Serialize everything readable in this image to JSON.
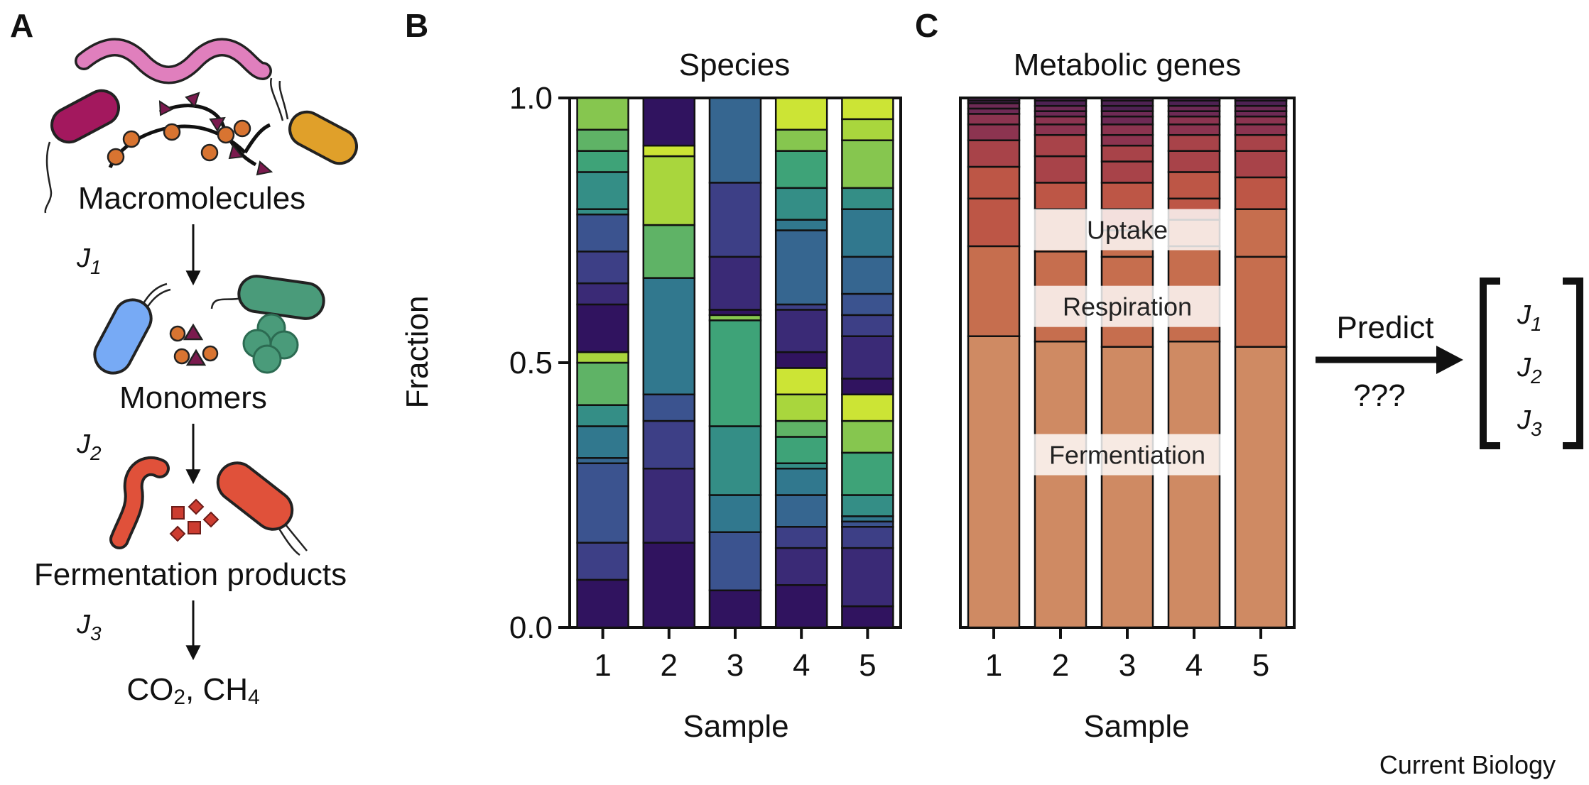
{
  "panel_a": {
    "letter": "A",
    "stages": [
      "Macromolecules",
      "Monomers",
      "Fermentation products"
    ],
    "final_pre": "CO",
    "final_sub1": "2",
    "final_mid": ", CH",
    "final_sub2": "4",
    "flux_labels": [
      {
        "j": "J",
        "sub": "1"
      },
      {
        "j": "J",
        "sub": "2"
      },
      {
        "j": "J",
        "sub": "3"
      }
    ]
  },
  "panel_b": {
    "letter": "B"
  },
  "panel_c": {
    "letter": "C"
  },
  "predict": {
    "label": "Predict",
    "unknown": "???",
    "vector": [
      {
        "j": "J",
        "sub": "1"
      },
      {
        "j": "J",
        "sub": "2"
      },
      {
        "j": "J",
        "sub": "3"
      }
    ]
  },
  "credit": "Current Biology",
  "colors": {
    "species": [
      "#30135f",
      "#3a2a76",
      "#3d3f86",
      "#3b538f",
      "#366690",
      "#31788e",
      "#348e86",
      "#3ea378",
      "#5fb366",
      "#86c64f",
      "#a9d63d",
      "#cce435"
    ],
    "genes": [
      "#cf8a63",
      "#c66e4e",
      "#bd5646",
      "#a84349",
      "#8c3450",
      "#6e2a55",
      "#4e2253"
    ]
  },
  "chart_data": [
    {
      "type": "bar",
      "stacked": true,
      "title": "Species",
      "xlabel": "Sample",
      "ylabel": "Fraction",
      "categories": [
        "1",
        "2",
        "3",
        "4",
        "5"
      ],
      "ylim": [
        0,
        1
      ],
      "yticks": [
        "0.0",
        "0.5",
        "1.0"
      ],
      "samples": [
        {
          "segments": [
            {
              "v": 0.09,
              "c": 0
            },
            {
              "v": 0.07,
              "c": 2
            },
            {
              "v": 0.15,
              "c": 3
            },
            {
              "v": 0.01,
              "c": 4
            },
            {
              "v": 0.06,
              "c": 5
            },
            {
              "v": 0.04,
              "c": 6
            },
            {
              "v": 0.08,
              "c": 8
            },
            {
              "v": 0.02,
              "c": 10
            },
            {
              "v": 0.09,
              "c": 0
            },
            {
              "v": 0.04,
              "c": 1
            },
            {
              "v": 0.06,
              "c": 2
            },
            {
              "v": 0.07,
              "c": 3
            },
            {
              "v": 0.01,
              "c": 6
            },
            {
              "v": 0.07,
              "c": 6
            },
            {
              "v": 0.04,
              "c": 7
            },
            {
              "v": 0.04,
              "c": 8
            },
            {
              "v": 0.06,
              "c": 9
            }
          ]
        },
        {
          "segments": [
            {
              "v": 0.16,
              "c": 0
            },
            {
              "v": 0.14,
              "c": 1
            },
            {
              "v": 0.09,
              "c": 2
            },
            {
              "v": 0.05,
              "c": 3
            },
            {
              "v": 0.22,
              "c": 5
            },
            {
              "v": 0.1,
              "c": 8
            },
            {
              "v": 0.13,
              "c": 10
            },
            {
              "v": 0.02,
              "c": 11
            },
            {
              "v": 0.09,
              "c": 0
            }
          ]
        },
        {
          "segments": [
            {
              "v": 0.07,
              "c": 0
            },
            {
              "v": 0.11,
              "c": 3
            },
            {
              "v": 0.07,
              "c": 5
            },
            {
              "v": 0.13,
              "c": 6
            },
            {
              "v": 0.2,
              "c": 7
            },
            {
              "v": 0.01,
              "c": 9
            },
            {
              "v": 0.01,
              "c": 0
            },
            {
              "v": 0.1,
              "c": 1
            },
            {
              "v": 0.14,
              "c": 2
            },
            {
              "v": 0.16,
              "c": 4
            }
          ]
        },
        {
          "segments": [
            {
              "v": 0.08,
              "c": 0
            },
            {
              "v": 0.07,
              "c": 1
            },
            {
              "v": 0.04,
              "c": 2
            },
            {
              "v": 0.06,
              "c": 4
            },
            {
              "v": 0.05,
              "c": 5
            },
            {
              "v": 0.01,
              "c": 6
            },
            {
              "v": 0.05,
              "c": 7
            },
            {
              "v": 0.03,
              "c": 8
            },
            {
              "v": 0.05,
              "c": 10
            },
            {
              "v": 0.05,
              "c": 11
            },
            {
              "v": 0.03,
              "c": 0
            },
            {
              "v": 0.08,
              "c": 1
            },
            {
              "v": 0.01,
              "c": 2
            },
            {
              "v": 0.14,
              "c": 4
            },
            {
              "v": 0.02,
              "c": 5
            },
            {
              "v": 0.06,
              "c": 6
            },
            {
              "v": 0.07,
              "c": 7
            },
            {
              "v": 0.04,
              "c": 9
            },
            {
              "v": 0.06,
              "c": 11
            }
          ]
        },
        {
          "segments": [
            {
              "v": 0.04,
              "c": 0
            },
            {
              "v": 0.11,
              "c": 1
            },
            {
              "v": 0.04,
              "c": 2
            },
            {
              "v": 0.01,
              "c": 3
            },
            {
              "v": 0.01,
              "c": 5
            },
            {
              "v": 0.04,
              "c": 6
            },
            {
              "v": 0.08,
              "c": 7
            },
            {
              "v": 0.06,
              "c": 9
            },
            {
              "v": 0.05,
              "c": 11
            },
            {
              "v": 0.03,
              "c": 0
            },
            {
              "v": 0.08,
              "c": 1
            },
            {
              "v": 0.04,
              "c": 2
            },
            {
              "v": 0.04,
              "c": 3
            },
            {
              "v": 0.07,
              "c": 4
            },
            {
              "v": 0.09,
              "c": 5
            },
            {
              "v": 0.04,
              "c": 6
            },
            {
              "v": 0.09,
              "c": 9
            },
            {
              "v": 0.04,
              "c": 10
            },
            {
              "v": 0.04,
              "c": 11
            }
          ]
        }
      ]
    },
    {
      "type": "bar",
      "stacked": true,
      "title": "Metabolic genes",
      "xlabel": "Sample",
      "categories": [
        "1",
        "2",
        "3",
        "4",
        "5"
      ],
      "ylim": [
        0,
        1
      ],
      "annotations": [
        {
          "text": "Fermentiation",
          "y": 0.325
        },
        {
          "text": "Respiration",
          "y": 0.605
        },
        {
          "text": "Uptake",
          "y": 0.75
        }
      ],
      "samples": [
        {
          "segments": [
            {
              "v": 0.55,
              "c": 0
            },
            {
              "v": 0.17,
              "c": 1
            },
            {
              "v": 0.09,
              "c": 2
            },
            {
              "v": 0.06,
              "c": 2
            },
            {
              "v": 0.05,
              "c": 3
            },
            {
              "v": 0.03,
              "c": 4
            },
            {
              "v": 0.02,
              "c": 4
            },
            {
              "v": 0.01,
              "c": 5
            },
            {
              "v": 0.01,
              "c": 5
            },
            {
              "v": 0.005,
              "c": 6
            },
            {
              "v": 0.005,
              "c": 6
            }
          ]
        },
        {
          "segments": [
            {
              "v": 0.54,
              "c": 0
            },
            {
              "v": 0.17,
              "c": 1
            },
            {
              "v": 0.08,
              "c": 1
            },
            {
              "v": 0.05,
              "c": 2
            },
            {
              "v": 0.05,
              "c": 3
            },
            {
              "v": 0.04,
              "c": 3
            },
            {
              "v": 0.02,
              "c": 4
            },
            {
              "v": 0.015,
              "c": 4
            },
            {
              "v": 0.01,
              "c": 5
            },
            {
              "v": 0.01,
              "c": 5
            },
            {
              "v": 0.01,
              "c": 6
            },
            {
              "v": 0.005,
              "c": 6
            }
          ]
        },
        {
          "segments": [
            {
              "v": 0.53,
              "c": 0
            },
            {
              "v": 0.17,
              "c": 1
            },
            {
              "v": 0.05,
              "c": 1
            },
            {
              "v": 0.04,
              "c": 2
            },
            {
              "v": 0.05,
              "c": 2
            },
            {
              "v": 0.04,
              "c": 3
            },
            {
              "v": 0.03,
              "c": 3
            },
            {
              "v": 0.02,
              "c": 4
            },
            {
              "v": 0.02,
              "c": 4
            },
            {
              "v": 0.015,
              "c": 5
            },
            {
              "v": 0.01,
              "c": 5
            },
            {
              "v": 0.01,
              "c": 6
            },
            {
              "v": 0.01,
              "c": 6
            },
            {
              "v": 0.005,
              "c": 6
            }
          ]
        },
        {
          "segments": [
            {
              "v": 0.54,
              "c": 0
            },
            {
              "v": 0.18,
              "c": 1
            },
            {
              "v": 0.05,
              "c": 1
            },
            {
              "v": 0.04,
              "c": 2
            },
            {
              "v": 0.05,
              "c": 2
            },
            {
              "v": 0.04,
              "c": 3
            },
            {
              "v": 0.03,
              "c": 3
            },
            {
              "v": 0.02,
              "c": 4
            },
            {
              "v": 0.015,
              "c": 4
            },
            {
              "v": 0.01,
              "c": 5
            },
            {
              "v": 0.01,
              "c": 5
            },
            {
              "v": 0.01,
              "c": 6
            },
            {
              "v": 0.005,
              "c": 6
            }
          ]
        },
        {
          "segments": [
            {
              "v": 0.53,
              "c": 0
            },
            {
              "v": 0.17,
              "c": 1
            },
            {
              "v": 0.09,
              "c": 1
            },
            {
              "v": 0.06,
              "c": 2
            },
            {
              "v": 0.05,
              "c": 3
            },
            {
              "v": 0.03,
              "c": 3
            },
            {
              "v": 0.02,
              "c": 4
            },
            {
              "v": 0.015,
              "c": 4
            },
            {
              "v": 0.01,
              "c": 5
            },
            {
              "v": 0.01,
              "c": 5
            },
            {
              "v": 0.01,
              "c": 6
            },
            {
              "v": 0.005,
              "c": 6
            }
          ]
        }
      ]
    }
  ]
}
